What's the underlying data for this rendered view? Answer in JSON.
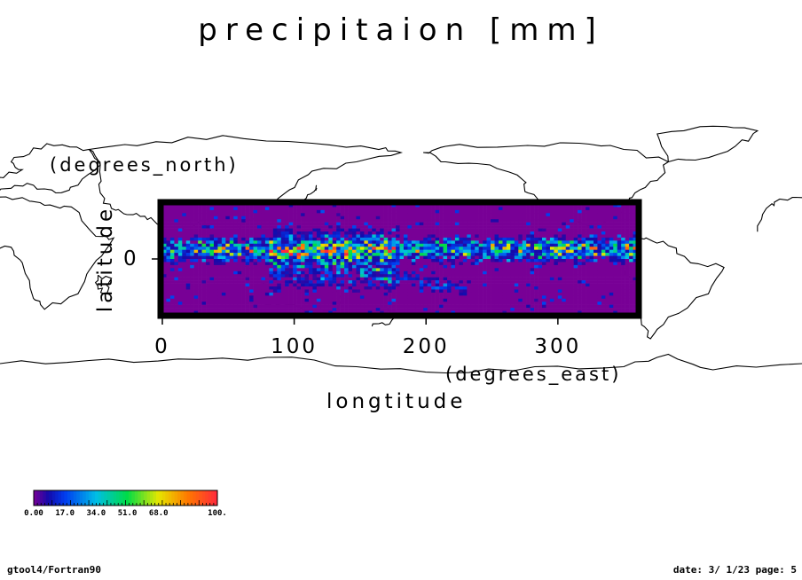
{
  "chart_data": {
    "type": "heatmap",
    "title": "precipitaion [mm]",
    "xlabel": "longtitude",
    "xunit": "(degrees_east)",
    "ylabel": "latitude",
    "yunit": "(degrees_north)",
    "xlim": [
      0,
      360
    ],
    "ylim": [
      -30,
      30
    ],
    "x_ticks": [
      "0",
      "100",
      "200",
      "300"
    ],
    "y_ticks": [
      "0"
    ],
    "colorbar": {
      "min": 0,
      "max": 100,
      "tick_labels": [
        "0.00",
        "17.0",
        "34.0",
        "51.0",
        "68.0",
        "100."
      ],
      "tick_values": [
        0,
        17,
        34,
        51,
        68,
        100
      ]
    },
    "field": {
      "background_level": 0,
      "itcz_latitude": 5,
      "warm_pool_longitudes": [
        100,
        160
      ],
      "peak_value": 100
    }
  },
  "footer": {
    "left": "gtool4/Fortran90",
    "right": "date: 3/ 1/23 page: 5"
  }
}
